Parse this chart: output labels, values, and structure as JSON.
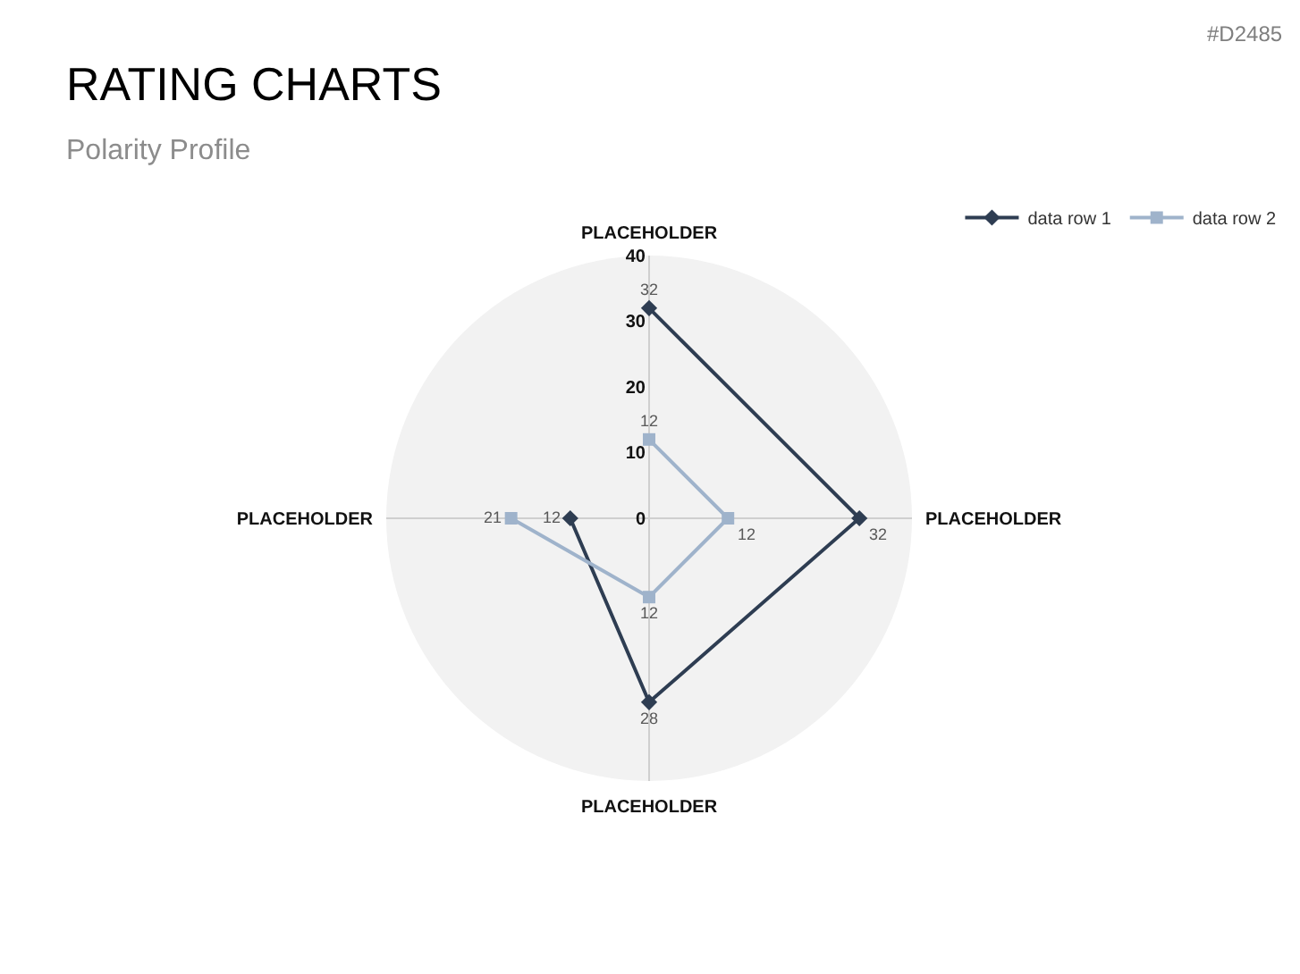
{
  "chart_data": {
    "type": "radar",
    "title": "RATING CHARTS",
    "subtitle": "Polarity Profile",
    "annotations": [
      "#D2485"
    ],
    "categories": [
      "PLACEHOLDER",
      "PLACEHOLDER",
      "PLACEHOLDER",
      "PLACEHOLDER"
    ],
    "series": [
      {
        "name": "data row 1",
        "color": "#2e3d52",
        "values": [
          32,
          32,
          28,
          12
        ],
        "marker": "diamond"
      },
      {
        "name": "data row 2",
        "color": "#9fb3cb",
        "values": [
          12,
          12,
          12,
          21
        ],
        "marker": "square"
      }
    ],
    "ylim": [
      0,
      40
    ],
    "yticks": [
      0,
      10,
      20,
      30,
      40
    ],
    "data_labels": true,
    "grid": "x",
    "legend": "top right",
    "line_style": "solid"
  }
}
